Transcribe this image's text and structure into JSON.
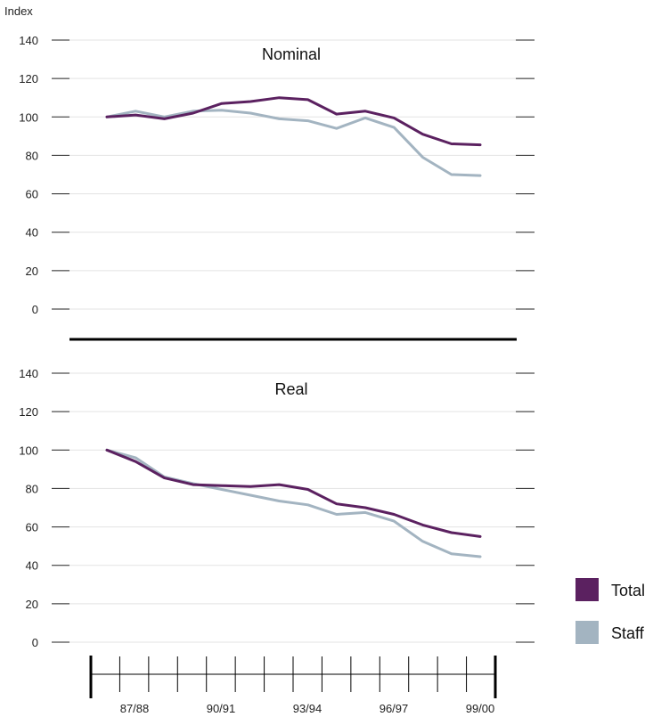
{
  "chart_data": {
    "type": "line",
    "ylabel": "Index",
    "xlabel": "",
    "ylim": [
      0,
      140
    ],
    "yticks": [
      0,
      20,
      40,
      60,
      80,
      100,
      120,
      140
    ],
    "x_axis_labels": [
      "87/88",
      "90/91",
      "93/94",
      "96/97",
      "99/00"
    ],
    "x_points": 14,
    "grid": true,
    "legend_position": "bottom-right",
    "legend": [
      {
        "name": "Total",
        "color": "#5b2160"
      },
      {
        "name": "Staff",
        "color": "#a3b4c1"
      }
    ],
    "panels": [
      {
        "title": "Nominal",
        "series": [
          {
            "name": "Total",
            "color": "#5b2160",
            "values": [
              100,
              101,
              99,
              102,
              107,
              108,
              110,
              109,
              101.5,
              103,
              99.5,
              91,
              86,
              85.5
            ]
          },
          {
            "name": "Staff",
            "color": "#a3b4c1",
            "values": [
              100,
              103,
              100,
              103,
              103.5,
              102,
              99,
              98,
              94,
              99.5,
              94.5,
              79,
              70,
              69.5
            ]
          }
        ]
      },
      {
        "title": "Real",
        "series": [
          {
            "name": "Total",
            "color": "#5b2160",
            "values": [
              100,
              94,
              85.5,
              82,
              81.5,
              81,
              82,
              79.5,
              72,
              70,
              66.5,
              61,
              57,
              55
            ]
          },
          {
            "name": "Staff",
            "color": "#a3b4c1",
            "values": [
              100,
              96,
              86,
              82.5,
              79.5,
              76.5,
              73.5,
              71.5,
              66.5,
              67.5,
              63,
              52.5,
              46,
              44.5
            ]
          }
        ]
      }
    ]
  }
}
